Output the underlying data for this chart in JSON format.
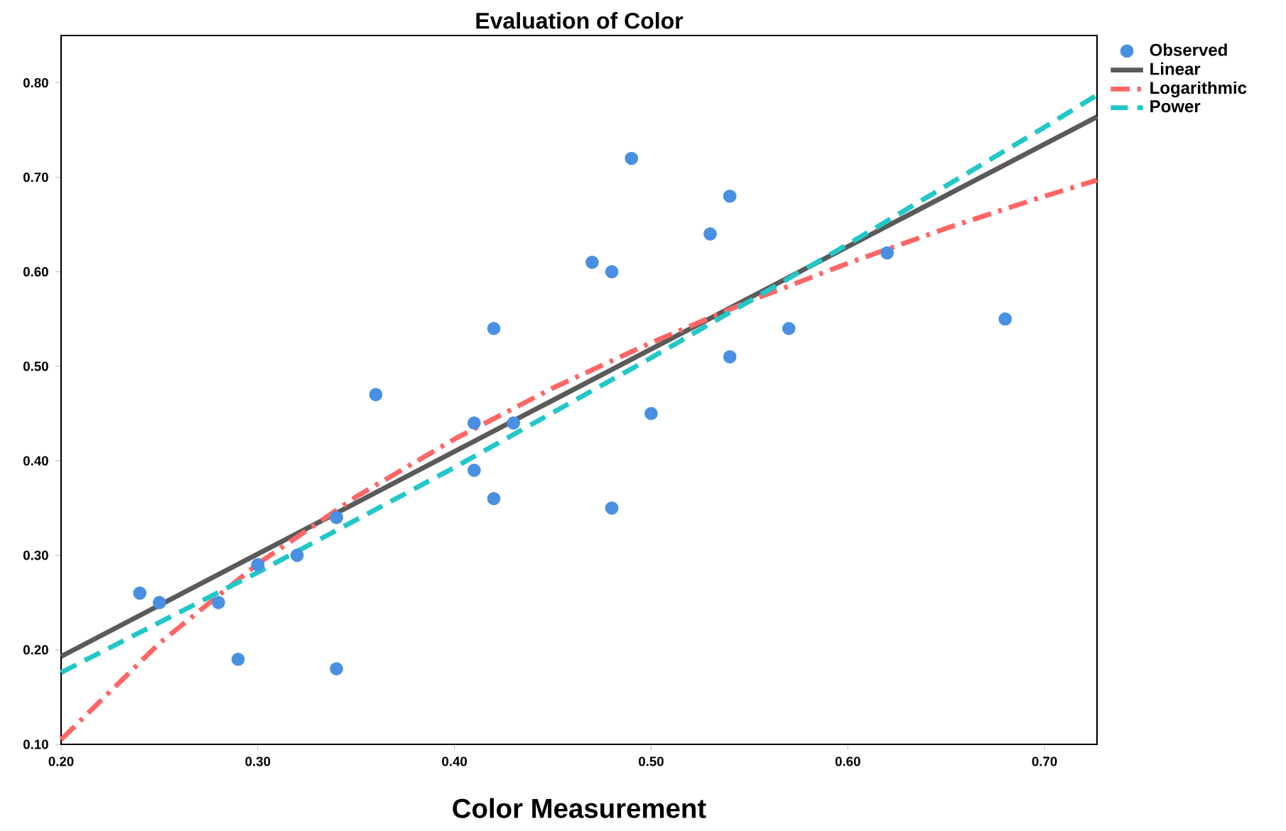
{
  "chart_data": {
    "type": "scatter",
    "title": "Evaluation of Color",
    "xlabel": "Color Measurement",
    "xlim": [
      0.2,
      0.7267
    ],
    "ylim": [
      0.1,
      0.85
    ],
    "xticks": [
      {
        "value": 0.2,
        "label": "0.20"
      },
      {
        "value": 0.3,
        "label": "0.30"
      },
      {
        "value": 0.4,
        "label": "0.40"
      },
      {
        "value": 0.5,
        "label": "0.50"
      },
      {
        "value": 0.6,
        "label": "0.60"
      },
      {
        "value": 0.7,
        "label": "0.70"
      }
    ],
    "yticks": [
      {
        "value": 0.1,
        "label": "0.10"
      },
      {
        "value": 0.2,
        "label": "0.20"
      },
      {
        "value": 0.3,
        "label": "0.30"
      },
      {
        "value": 0.4,
        "label": "0.40"
      },
      {
        "value": 0.5,
        "label": "0.50"
      },
      {
        "value": 0.6,
        "label": "0.60"
      },
      {
        "value": 0.7,
        "label": "0.70"
      },
      {
        "value": 0.8,
        "label": "0.80"
      }
    ],
    "grid": false,
    "legend": "top right",
    "series": [
      {
        "name": "Observed",
        "marker": "circle",
        "color": "#4a90e2",
        "x": [
          0.24,
          0.25,
          0.28,
          0.29,
          0.3,
          0.32,
          0.34,
          0.34,
          0.36,
          0.41,
          0.41,
          0.42,
          0.42,
          0.43,
          0.47,
          0.48,
          0.48,
          0.49,
          0.5,
          0.53,
          0.54,
          0.54,
          0.57,
          0.62,
          0.68
        ],
        "values": [
          0.26,
          0.25,
          0.25,
          0.19,
          0.29,
          0.3,
          0.34,
          0.18,
          0.47,
          0.44,
          0.39,
          0.54,
          0.36,
          0.44,
          0.61,
          0.6,
          0.35,
          0.72,
          0.45,
          0.64,
          0.68,
          0.51,
          0.54,
          0.62,
          0.55
        ]
      },
      {
        "name": "Linear",
        "type": "line",
        "marker": "none",
        "line_style": "solid",
        "color": "#5a5a5a",
        "x": [
          0.2,
          0.7267
        ],
        "values": [
          0.193,
          0.764
        ]
      },
      {
        "name": "Logarithmic",
        "type": "line",
        "marker": "none",
        "line_style": "dashdot",
        "color": "#ff6666",
        "x": [
          0.2,
          0.25,
          0.3,
          0.35,
          0.4,
          0.45,
          0.5,
          0.55,
          0.6,
          0.65,
          0.7,
          0.7267
        ],
        "values": [
          0.105,
          0.207,
          0.291,
          0.362,
          0.423,
          0.477,
          0.525,
          0.569,
          0.609,
          0.646,
          0.68,
          0.697
        ]
      },
      {
        "name": "Power",
        "type": "line",
        "marker": "none",
        "line_style": "dashed",
        "color": "#22c7c7",
        "x": [
          0.2,
          0.3,
          0.4,
          0.5,
          0.6,
          0.7,
          0.7267
        ],
        "values": [
          0.176,
          0.282,
          0.393,
          0.509,
          0.629,
          0.753,
          0.787
        ]
      }
    ]
  }
}
